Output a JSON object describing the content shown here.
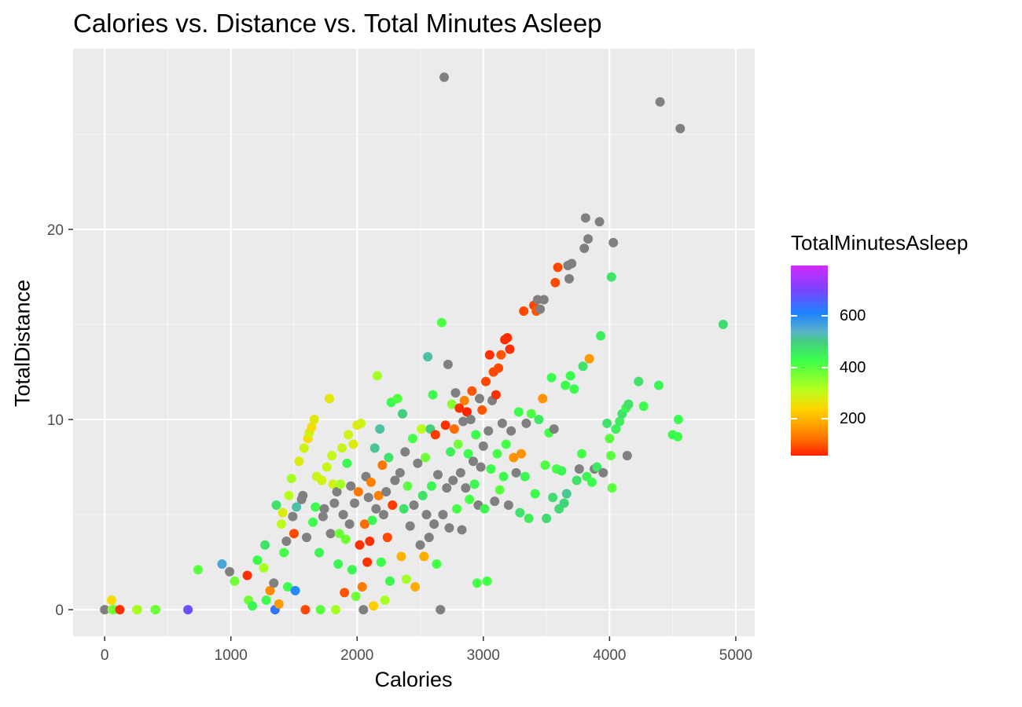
{
  "chart_data": {
    "type": "scatter",
    "title": "Calories vs. Distance vs. Total Minutes Asleep",
    "xlabel": "Calories",
    "ylabel": "TotalDistance",
    "xlim": [
      -250,
      5150
    ],
    "ylim": [
      -1.4,
      29.5
    ],
    "x_ticks": [
      0,
      1000,
      2000,
      3000,
      4000,
      5000
    ],
    "y_ticks": [
      0,
      10,
      20
    ],
    "grid": true,
    "legend": {
      "title": "TotalMinutesAsleep",
      "position": "right",
      "type": "colorbar",
      "ticks": [
        200,
        400,
        600
      ],
      "range": [
        58,
        796
      ]
    },
    "na_color": "#808080",
    "points": [
      [
        0,
        0,
        null
      ],
      [
        55,
        0.5,
        250
      ],
      [
        60,
        0,
        330
      ],
      [
        70,
        0,
        380
      ],
      [
        120,
        0,
        70
      ],
      [
        255,
        0,
        330
      ],
      [
        260,
        0,
        330
      ],
      [
        400,
        0,
        390
      ],
      [
        405,
        0,
        380
      ],
      [
        660,
        0,
        690
      ],
      [
        740,
        2.1,
        400
      ],
      [
        930,
        2.4,
        560
      ],
      [
        990,
        2.0,
        null
      ],
      [
        1030,
        1.5,
        380
      ],
      [
        1130,
        1.8,
        70
      ],
      [
        1140,
        0.5,
        380
      ],
      [
        1170,
        0.2,
        440
      ],
      [
        1210,
        2.6,
        430
      ],
      [
        1260,
        2.2,
        330
      ],
      [
        1270,
        3.4,
        470
      ],
      [
        1280,
        0.5,
        430
      ],
      [
        1310,
        1.0,
        150
      ],
      [
        1340,
        1.4,
        null
      ],
      [
        1350,
        0,
        630
      ],
      [
        1360,
        5.5,
        470
      ],
      [
        1380,
        0.3,
        170
      ],
      [
        1400,
        4.5,
        310
      ],
      [
        1410,
        5.1,
        280
      ],
      [
        1420,
        3.0,
        420
      ],
      [
        1440,
        3.6,
        null
      ],
      [
        1450,
        1.2,
        430
      ],
      [
        1460,
        6.0,
        310
      ],
      [
        1480,
        6.9,
        330
      ],
      [
        1490,
        4.9,
        null
      ],
      [
        1500,
        4.0,
        90
      ],
      [
        1510,
        1.0,
        600
      ],
      [
        1520,
        5.4,
        520
      ],
      [
        1540,
        7.8,
        280
      ],
      [
        1560,
        5.8,
        null
      ],
      [
        1570,
        6.0,
        null
      ],
      [
        1580,
        8.5,
        290
      ],
      [
        1590,
        0,
        90
      ],
      [
        1600,
        3.8,
        null
      ],
      [
        1610,
        9.0,
        250
      ],
      [
        1620,
        9.3,
        290
      ],
      [
        1640,
        9.6,
        250
      ],
      [
        1650,
        4.6,
        430
      ],
      [
        1660,
        10.0,
        270
      ],
      [
        1670,
        5.4,
        430
      ],
      [
        1680,
        7.0,
        300
      ],
      [
        1700,
        3.0,
        440
      ],
      [
        1710,
        0,
        400
      ],
      [
        1720,
        6.8,
        290
      ],
      [
        1730,
        4.9,
        null
      ],
      [
        1740,
        5.3,
        null
      ],
      [
        1760,
        7.5,
        300
      ],
      [
        1780,
        11.1,
        270
      ],
      [
        1790,
        4.0,
        null
      ],
      [
        1800,
        8.1,
        300
      ],
      [
        1810,
        6.6,
        290
      ],
      [
        1820,
        5.6,
        null
      ],
      [
        1830,
        0,
        330
      ],
      [
        1840,
        6.2,
        null
      ],
      [
        1850,
        2.4,
        440
      ],
      [
        1860,
        4.0,
        380
      ],
      [
        1870,
        6.6,
        330
      ],
      [
        1880,
        8.5,
        300
      ],
      [
        1890,
        5.0,
        null
      ],
      [
        1900,
        0.9,
        100
      ],
      [
        1910,
        3.7,
        380
      ],
      [
        1920,
        7.7,
        440
      ],
      [
        1930,
        9.2,
        290
      ],
      [
        1940,
        4.5,
        null
      ],
      [
        1950,
        6.5,
        null
      ],
      [
        1960,
        2.1,
        440
      ],
      [
        1970,
        8.7,
        280
      ],
      [
        1980,
        5.6,
        null
      ],
      [
        1990,
        0.7,
        380
      ],
      [
        2000,
        9.7,
        270
      ],
      [
        2010,
        6.2,
        130
      ],
      [
        2020,
        3.4,
        70
      ],
      [
        2030,
        9.8,
        290
      ],
      [
        2040,
        1.2,
        130
      ],
      [
        2050,
        0,
        null
      ],
      [
        2060,
        4.5,
        120
      ],
      [
        2070,
        7.0,
        null
      ],
      [
        2080,
        2.5,
        70
      ],
      [
        2090,
        5.9,
        null
      ],
      [
        2100,
        3.6,
        70
      ],
      [
        2110,
        6.7,
        140
      ],
      [
        2120,
        4.7,
        440
      ],
      [
        2130,
        0.2,
        230
      ],
      [
        2140,
        8.5,
        510
      ],
      [
        2150,
        5.3,
        null
      ],
      [
        2160,
        12.3,
        330
      ],
      [
        2170,
        6.0,
        140
      ],
      [
        2180,
        9.5,
        520
      ],
      [
        2190,
        2.5,
        430
      ],
      [
        2200,
        7.6,
        130
      ],
      [
        2210,
        5.0,
        null
      ],
      [
        2220,
        0.5,
        330
      ],
      [
        2230,
        6.2,
        null
      ],
      [
        2240,
        3.8,
        90
      ],
      [
        2250,
        8.0,
        470
      ],
      [
        2260,
        1.5,
        440
      ],
      [
        2270,
        10.9,
        430
      ],
      [
        2280,
        5.5,
        80
      ],
      [
        2300,
        6.8,
        null
      ],
      [
        2320,
        11.1,
        410
      ],
      [
        2340,
        7.2,
        null
      ],
      [
        2350,
        2.8,
        200
      ],
      [
        2360,
        10.3,
        500
      ],
      [
        2370,
        5.3,
        470
      ],
      [
        2380,
        8.3,
        null
      ],
      [
        2390,
        1.6,
        330
      ],
      [
        2400,
        6.5,
        400
      ],
      [
        2420,
        4.4,
        null
      ],
      [
        2440,
        9.0,
        420
      ],
      [
        2450,
        5.5,
        null
      ],
      [
        2460,
        1.2,
        190
      ],
      [
        2480,
        7.7,
        null
      ],
      [
        2500,
        3.4,
        null
      ],
      [
        2510,
        9.5,
        310
      ],
      [
        2520,
        6.0,
        470
      ],
      [
        2530,
        2.8,
        190
      ],
      [
        2540,
        8.0,
        380
      ],
      [
        2550,
        5.0,
        null
      ],
      [
        2560,
        13.3,
        520
      ],
      [
        2570,
        3.8,
        null
      ],
      [
        2580,
        9.5,
        500
      ],
      [
        2590,
        6.5,
        440
      ],
      [
        2600,
        11.3,
        430
      ],
      [
        2610,
        4.5,
        null
      ],
      [
        2620,
        9.2,
        80
      ],
      [
        2630,
        2.4,
        420
      ],
      [
        2640,
        7.1,
        null
      ],
      [
        2660,
        0,
        null
      ],
      [
        2670,
        15.1,
        410
      ],
      [
        2680,
        5.0,
        null
      ],
      [
        2690,
        28.0,
        null
      ],
      [
        2700,
        9.7,
        70
      ],
      [
        2710,
        6.4,
        null
      ],
      [
        2720,
        12.9,
        null
      ],
      [
        2730,
        4.3,
        null
      ],
      [
        2740,
        8.3,
        450
      ],
      [
        2750,
        10.8,
        360
      ],
      [
        2760,
        6.8,
        null
      ],
      [
        2770,
        9.5,
        120
      ],
      [
        2780,
        11.4,
        null
      ],
      [
        2790,
        5.3,
        420
      ],
      [
        2800,
        8.7,
        380
      ],
      [
        2810,
        10.6,
        70
      ],
      [
        2820,
        7.2,
        null
      ],
      [
        2830,
        4.2,
        null
      ],
      [
        2840,
        9.9,
        null
      ],
      [
        2850,
        11.0,
        140
      ],
      [
        2860,
        6.4,
        null
      ],
      [
        2870,
        10.4,
        50
      ],
      [
        2880,
        8.2,
        430
      ],
      [
        2890,
        5.8,
        420
      ],
      [
        2900,
        10.0,
        null
      ],
      [
        2910,
        11.5,
        100
      ],
      [
        2920,
        7.8,
        null
      ],
      [
        2930,
        6.6,
        440
      ],
      [
        2940,
        9.2,
        430
      ],
      [
        2950,
        1.4,
        420
      ],
      [
        2960,
        5.5,
        null
      ],
      [
        2970,
        11.1,
        null
      ],
      [
        2980,
        7.5,
        null
      ],
      [
        2990,
        10.5,
        100
      ],
      [
        3000,
        8.6,
        null
      ],
      [
        3010,
        5.3,
        440
      ],
      [
        3020,
        12.0,
        90
      ],
      [
        3030,
        1.5,
        420
      ],
      [
        3040,
        9.4,
        null
      ],
      [
        3050,
        13.4,
        70
      ],
      [
        3060,
        7.4,
        430
      ],
      [
        3070,
        11.0,
        null
      ],
      [
        3080,
        12.5,
        90
      ],
      [
        3090,
        5.7,
        null
      ],
      [
        3100,
        11.3,
        70
      ],
      [
        3110,
        8.2,
        420
      ],
      [
        3120,
        12.7,
        90
      ],
      [
        3130,
        6.3,
        400
      ],
      [
        3140,
        13.4,
        100
      ],
      [
        3150,
        9.8,
        null
      ],
      [
        3160,
        7.0,
        430
      ],
      [
        3170,
        14.2,
        70
      ],
      [
        3180,
        8.7,
        420
      ],
      [
        3190,
        14.3,
        70
      ],
      [
        3200,
        5.5,
        null
      ],
      [
        3210,
        13.7,
        70
      ],
      [
        3220,
        9.4,
        null
      ],
      [
        3240,
        8.0,
        160
      ],
      [
        3260,
        7.2,
        null
      ],
      [
        3280,
        10.4,
        430
      ],
      [
        3290,
        5.1,
        470
      ],
      [
        3300,
        8.2,
        160
      ],
      [
        3320,
        15.7,
        90
      ],
      [
        3330,
        7.0,
        440
      ],
      [
        3340,
        9.8,
        null
      ],
      [
        3360,
        4.8,
        450
      ],
      [
        3380,
        10.3,
        410
      ],
      [
        3400,
        16.0,
        90
      ],
      [
        3410,
        6.1,
        430
      ],
      [
        3420,
        15.7,
        100
      ],
      [
        3430,
        16.3,
        null
      ],
      [
        3440,
        10.0,
        460
      ],
      [
        3450,
        15.8,
        null
      ],
      [
        3470,
        11.1,
        160
      ],
      [
        3480,
        16.3,
        null
      ],
      [
        3490,
        7.6,
        410
      ],
      [
        3500,
        4.8,
        480
      ],
      [
        3520,
        9.3,
        420
      ],
      [
        3540,
        12.2,
        430
      ],
      [
        3550,
        5.9,
        480
      ],
      [
        3560,
        9.5,
        null
      ],
      [
        3570,
        17.2,
        90
      ],
      [
        3580,
        7.4,
        420
      ],
      [
        3590,
        18.0,
        90
      ],
      [
        3600,
        5.3,
        480
      ],
      [
        3620,
        7.3,
        440
      ],
      [
        3640,
        5.6,
        490
      ],
      [
        3650,
        11.8,
        430
      ],
      [
        3660,
        6.1,
        510
      ],
      [
        3670,
        18.1,
        null
      ],
      [
        3680,
        17.4,
        null
      ],
      [
        3690,
        12.3,
        430
      ],
      [
        3700,
        18.2,
        null
      ],
      [
        3720,
        11.6,
        430
      ],
      [
        3740,
        6.8,
        470
      ],
      [
        3760,
        7.4,
        null
      ],
      [
        3780,
        8.2,
        420
      ],
      [
        3790,
        12.8,
        470
      ],
      [
        3800,
        19.0,
        null
      ],
      [
        3810,
        20.6,
        null
      ],
      [
        3820,
        7.0,
        440
      ],
      [
        3830,
        19.5,
        null
      ],
      [
        3840,
        13.2,
        170
      ],
      [
        3860,
        6.7,
        430
      ],
      [
        3880,
        7.4,
        null
      ],
      [
        3900,
        7.5,
        460
      ],
      [
        3920,
        20.4,
        null
      ],
      [
        3930,
        14.4,
        450
      ],
      [
        3950,
        7.2,
        null
      ],
      [
        3980,
        9.8,
        470
      ],
      [
        4000,
        9.0,
        400
      ],
      [
        4010,
        8.1,
        400
      ],
      [
        4015,
        17.5,
        470
      ],
      [
        4020,
        6.4,
        400
      ],
      [
        4030,
        19.3,
        null
      ],
      [
        4050,
        9.5,
        450
      ],
      [
        4080,
        9.9,
        450
      ],
      [
        4100,
        10.3,
        470
      ],
      [
        4130,
        10.6,
        440
      ],
      [
        4140,
        8.1,
        null
      ],
      [
        4150,
        10.8,
        470
      ],
      [
        4230,
        12.0,
        470
      ],
      [
        4270,
        10.7,
        430
      ],
      [
        4390,
        11.8,
        440
      ],
      [
        4400,
        26.7,
        null
      ],
      [
        4500,
        9.2,
        430
      ],
      [
        4540,
        9.1,
        430
      ],
      [
        4545,
        10.0,
        430
      ],
      [
        4560,
        25.3,
        null
      ],
      [
        4900,
        15.0,
        480
      ]
    ]
  }
}
